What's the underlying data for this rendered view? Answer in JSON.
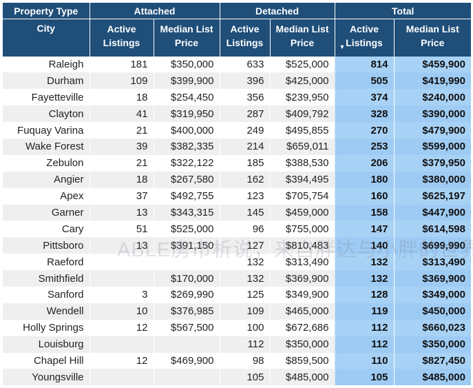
{
  "headers": {
    "property_type": "Property Type",
    "attached": "Attached",
    "detached": "Detached",
    "total": "Total",
    "city": "City",
    "active_listings": [
      "Active",
      "Listings"
    ],
    "median_list_price": [
      "Median List",
      "Price"
    ]
  },
  "watermark": "ABLE房市析说，来自胖达与小胖的世界",
  "rows": [
    {
      "city": "Raleigh",
      "att_active": "181",
      "att_price": "$350,000",
      "det_active": "633",
      "det_price": "$525,000",
      "tot_active": "814",
      "tot_price": "$459,900"
    },
    {
      "city": "Durham",
      "att_active": "109",
      "att_price": "$399,900",
      "det_active": "396",
      "det_price": "$425,000",
      "tot_active": "505",
      "tot_price": "$419,990"
    },
    {
      "city": "Fayetteville",
      "att_active": "18",
      "att_price": "$254,450",
      "det_active": "356",
      "det_price": "$239,950",
      "tot_active": "374",
      "tot_price": "$240,000"
    },
    {
      "city": "Clayton",
      "att_active": "41",
      "att_price": "$319,950",
      "det_active": "287",
      "det_price": "$409,792",
      "tot_active": "328",
      "tot_price": "$390,000"
    },
    {
      "city": "Fuquay Varina",
      "att_active": "21",
      "att_price": "$400,000",
      "det_active": "249",
      "det_price": "$495,855",
      "tot_active": "270",
      "tot_price": "$479,900"
    },
    {
      "city": "Wake Forest",
      "att_active": "39",
      "att_price": "$382,335",
      "det_active": "214",
      "det_price": "$659,011",
      "tot_active": "253",
      "tot_price": "$599,000"
    },
    {
      "city": "Zebulon",
      "att_active": "21",
      "att_price": "$322,122",
      "det_active": "185",
      "det_price": "$388,530",
      "tot_active": "206",
      "tot_price": "$379,950"
    },
    {
      "city": "Angier",
      "att_active": "18",
      "att_price": "$267,580",
      "det_active": "162",
      "det_price": "$394,495",
      "tot_active": "180",
      "tot_price": "$380,000"
    },
    {
      "city": "Apex",
      "att_active": "37",
      "att_price": "$492,755",
      "det_active": "123",
      "det_price": "$705,754",
      "tot_active": "160",
      "tot_price": "$625,197"
    },
    {
      "city": "Garner",
      "att_active": "13",
      "att_price": "$343,315",
      "det_active": "145",
      "det_price": "$459,000",
      "tot_active": "158",
      "tot_price": "$447,900"
    },
    {
      "city": "Cary",
      "att_active": "51",
      "att_price": "$525,000",
      "det_active": "96",
      "det_price": "$755,000",
      "tot_active": "147",
      "tot_price": "$614,598"
    },
    {
      "city": "Pittsboro",
      "att_active": "13",
      "att_price": "$391,150",
      "det_active": "127",
      "det_price": "$810,483",
      "tot_active": "140",
      "tot_price": "$699,990"
    },
    {
      "city": "Raeford",
      "att_active": "",
      "att_price": "",
      "det_active": "132",
      "det_price": "$313,490",
      "tot_active": "132",
      "tot_price": "$313,490"
    },
    {
      "city": "Smithfield",
      "att_active": "",
      "att_price": "$170,000",
      "det_active": "132",
      "det_price": "$369,900",
      "tot_active": "132",
      "tot_price": "$369,900"
    },
    {
      "city": "Sanford",
      "att_active": "3",
      "att_price": "$269,990",
      "det_active": "125",
      "det_price": "$349,900",
      "tot_active": "128",
      "tot_price": "$349,000"
    },
    {
      "city": "Wendell",
      "att_active": "10",
      "att_price": "$376,985",
      "det_active": "109",
      "det_price": "$465,000",
      "tot_active": "119",
      "tot_price": "$450,000"
    },
    {
      "city": "Holly Springs",
      "att_active": "12",
      "att_price": "$567,500",
      "det_active": "100",
      "det_price": "$672,686",
      "tot_active": "112",
      "tot_price": "$660,023"
    },
    {
      "city": "Louisburg",
      "att_active": "",
      "att_price": "",
      "det_active": "112",
      "det_price": "$350,000",
      "tot_active": "112",
      "tot_price": "$350,000"
    },
    {
      "city": "Chapel Hill",
      "att_active": "12",
      "att_price": "$469,900",
      "det_active": "98",
      "det_price": "$859,500",
      "tot_active": "110",
      "tot_price": "$827,450"
    },
    {
      "city": "Youngsville",
      "att_active": "",
      "att_price": "",
      "det_active": "105",
      "det_price": "$485,000",
      "tot_active": "105",
      "tot_price": "$485,000"
    }
  ]
}
